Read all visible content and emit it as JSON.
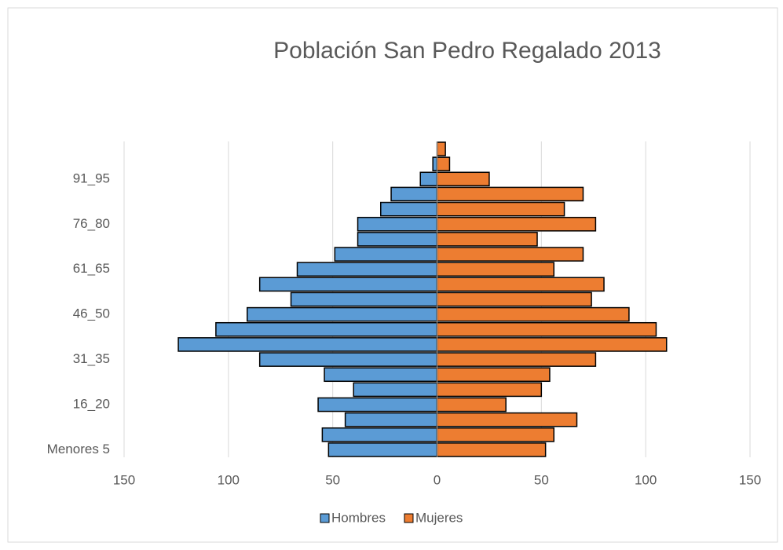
{
  "chart_data": {
    "type": "bar",
    "orientation": "horizontal",
    "title": "Población San Pedro Regalado 2013",
    "categories": [
      "Menores 5",
      null,
      null,
      "16_20",
      null,
      null,
      "31_35",
      null,
      null,
      "46_50",
      null,
      null,
      "61_65",
      null,
      null,
      "76_80",
      null,
      null,
      "91_95",
      null,
      null
    ],
    "series": [
      {
        "name": "Hombres",
        "color": "#5b9bd5",
        "values": [
          -52,
          -55,
          -44,
          -57,
          -40,
          -54,
          -85,
          -124,
          -106,
          -91,
          -70,
          -85,
          -67,
          -49,
          -38,
          -38,
          -27,
          -22,
          -8,
          -2,
          0
        ]
      },
      {
        "name": "Mujeres",
        "color": "#ed7d31",
        "values": [
          52,
          56,
          67,
          33,
          50,
          54,
          76,
          110,
          105,
          92,
          74,
          80,
          56,
          70,
          48,
          76,
          61,
          70,
          25,
          6,
          4
        ]
      }
    ],
    "xlim": [
      -150,
      150
    ],
    "xticks": [
      {
        "value": -150,
        "label": "150"
      },
      {
        "value": -100,
        "label": "100"
      },
      {
        "value": -50,
        "label": "50"
      },
      0,
      50,
      100,
      150
    ],
    "grid": true,
    "legend": "bottom"
  }
}
